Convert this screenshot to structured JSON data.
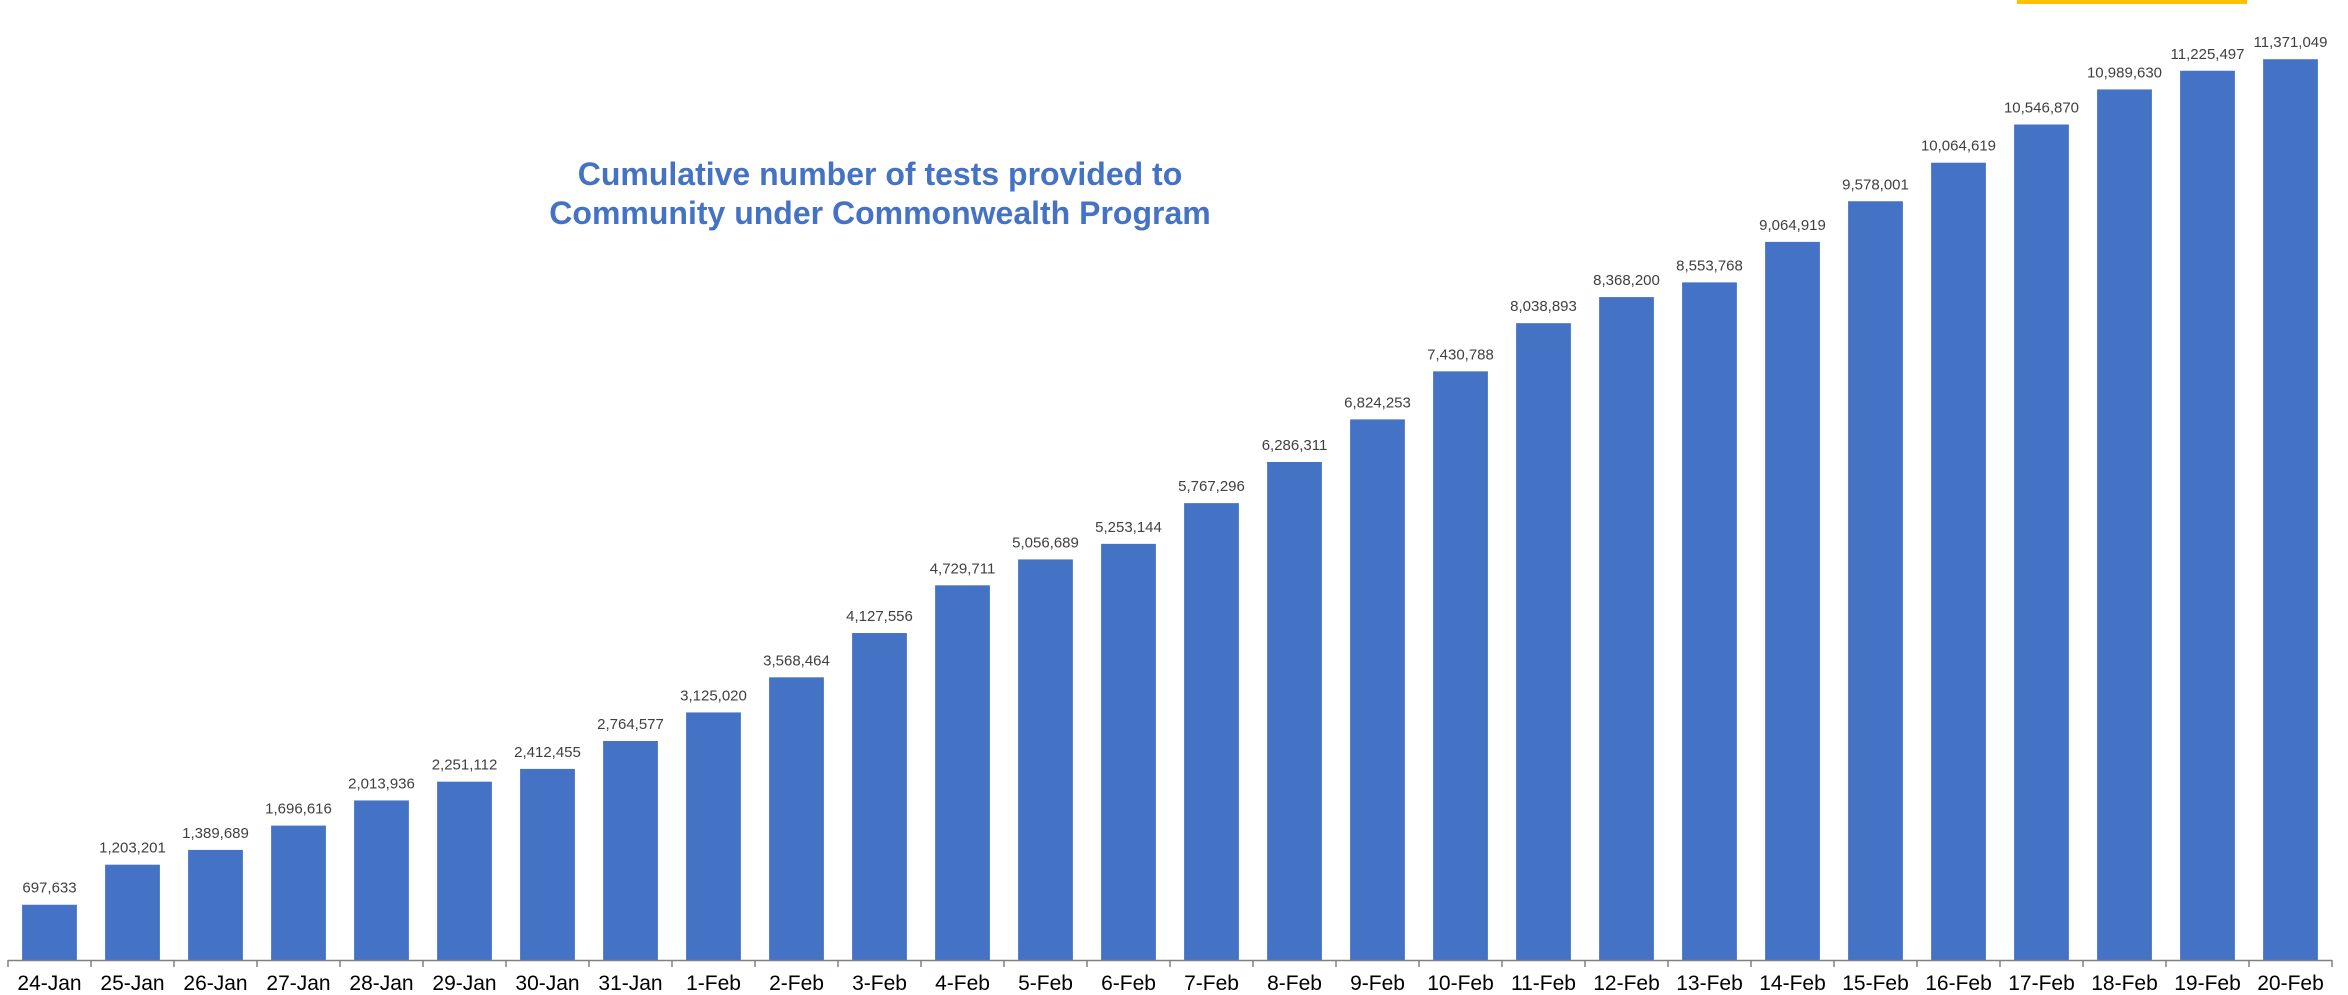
{
  "colors": {
    "bar": "#4472c4",
    "axis": "#808080",
    "title": "#4472c4",
    "accent": "#ffc000"
  },
  "chart_data": {
    "type": "bar",
    "title_lines": [
      "Cumulative number of tests provided to",
      "Community under Commonwealth Program"
    ],
    "xlabel": "",
    "ylabel": "",
    "ylim": [
      0,
      11500000
    ],
    "grid": false,
    "legend": "none",
    "categories": [
      "24-Jan",
      "25-Jan",
      "26-Jan",
      "27-Jan",
      "28-Jan",
      "29-Jan",
      "30-Jan",
      "31-Jan",
      "1-Feb",
      "2-Feb",
      "3-Feb",
      "4-Feb",
      "5-Feb",
      "6-Feb",
      "7-Feb",
      "8-Feb",
      "9-Feb",
      "10-Feb",
      "11-Feb",
      "12-Feb",
      "13-Feb",
      "14-Feb",
      "15-Feb",
      "16-Feb",
      "17-Feb",
      "18-Feb",
      "19-Feb",
      "20-Feb"
    ],
    "values": [
      697633,
      1203201,
      1389689,
      1696616,
      2013936,
      2251112,
      2412455,
      2764577,
      3125020,
      3568464,
      4127556,
      4729711,
      5056689,
      5253144,
      5767296,
      6286311,
      6824253,
      7430788,
      8038893,
      8368200,
      8553768,
      9064919,
      9578001,
      10064619,
      10546870,
      10989630,
      11225497,
      11371049
    ],
    "value_labels": [
      "697,633",
      "1,203,201",
      "1,389,689",
      "1,696,616",
      "2,013,936",
      "2,251,112",
      "2,412,455",
      "2,764,577",
      "3,125,020",
      "3,568,464",
      "4,127,556",
      "4,729,711",
      "5,056,689",
      "5,253,144",
      "5,767,296",
      "6,286,311",
      "6,824,253",
      "7,430,788",
      "8,038,893",
      "8,368,200",
      "8,553,768",
      "9,064,919",
      "9,578,001",
      "10,064,619",
      "10,546,870",
      "10,989,630",
      "11,225,497",
      "11,371,049"
    ]
  }
}
